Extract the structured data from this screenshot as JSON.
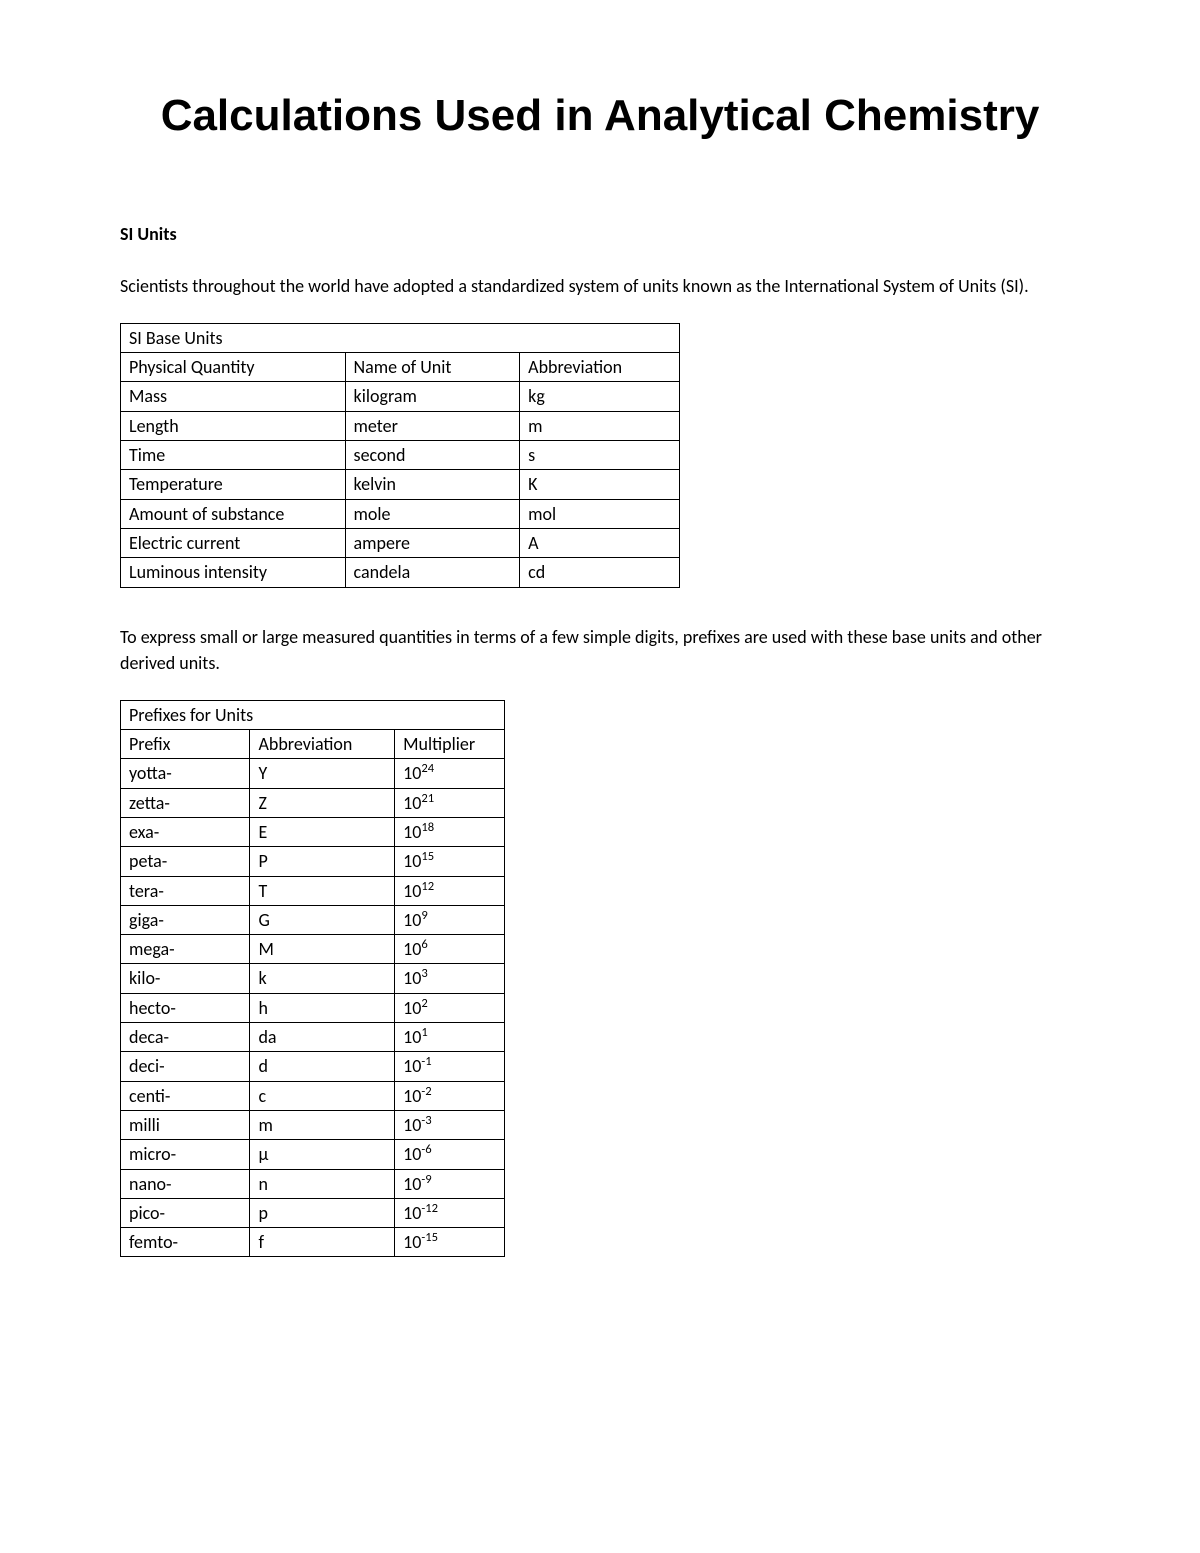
{
  "title": "Calculations Used in Analytical Chemistry",
  "section1": {
    "heading": "SI Units",
    "intro": "Scientists throughout the world have adopted a standardized system of units known as the International System of Units (SI)."
  },
  "table1": {
    "caption": "SI Base Units",
    "headers": [
      "Physical Quantity",
      "Name of Unit",
      "Abbreviation"
    ],
    "rows": [
      [
        "Mass",
        "kilogram",
        "kg"
      ],
      [
        "Length",
        "meter",
        "m"
      ],
      [
        "Time",
        "second",
        "s"
      ],
      [
        "Temperature",
        "kelvin",
        "K"
      ],
      [
        "Amount of substance",
        "mole",
        "mol"
      ],
      [
        "Electric current",
        "ampere",
        "A"
      ],
      [
        "Luminous intensity",
        "candela",
        "cd"
      ]
    ]
  },
  "section2": {
    "intro": "To express small or large measured quantities in terms of a few simple digits, prefixes are used with these base units and other derived units."
  },
  "table2": {
    "caption": "Prefixes for Units",
    "headers": [
      "Prefix",
      "Abbreviation",
      "Multiplier"
    ],
    "rows": [
      {
        "prefix": "yotta-",
        "abbr": "Y",
        "base": "10",
        "exp": "24"
      },
      {
        "prefix": "zetta-",
        "abbr": "Z",
        "base": "10",
        "exp": "21"
      },
      {
        "prefix": "exa-",
        "abbr": "E",
        "base": "10",
        "exp": "18"
      },
      {
        "prefix": "peta-",
        "abbr": "P",
        "base": "10",
        "exp": "15"
      },
      {
        "prefix": "tera-",
        "abbr": "T",
        "base": "10",
        "exp": "12"
      },
      {
        "prefix": "giga-",
        "abbr": "G",
        "base": "10",
        "exp": "9"
      },
      {
        "prefix": "mega-",
        "abbr": "M",
        "base": "10",
        "exp": "6"
      },
      {
        "prefix": "kilo-",
        "abbr": "k",
        "base": "10",
        "exp": "3"
      },
      {
        "prefix": "hecto-",
        "abbr": "h",
        "base": "10",
        "exp": "2"
      },
      {
        "prefix": "deca-",
        "abbr": "da",
        "base": "10",
        "exp": "1"
      },
      {
        "prefix": "deci-",
        "abbr": "d",
        "base": "10",
        "exp": "-1"
      },
      {
        "prefix": "centi-",
        "abbr": "c",
        "base": "10",
        "exp": "-2"
      },
      {
        "prefix": "milli",
        "abbr": "m",
        "base": "10",
        "exp": "-3"
      },
      {
        "prefix": "micro-",
        "abbr": "μ",
        "base": "10",
        "exp": "-6"
      },
      {
        "prefix": "nano-",
        "abbr": "n",
        "base": "10",
        "exp": "-9"
      },
      {
        "prefix": "pico-",
        "abbr": "p",
        "base": "10",
        "exp": "-12"
      },
      {
        "prefix": "femto-",
        "abbr": "f",
        "base": "10",
        "exp": "-15"
      }
    ]
  }
}
